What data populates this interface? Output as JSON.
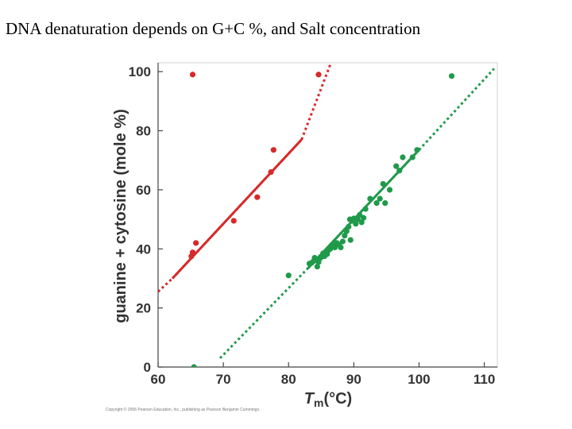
{
  "slide": {
    "title": "DNA denaturation depends on G+C %, and Salt concentration",
    "copyright": "Copyright © 2006 Pearson Education, Inc., publishing as Pearson Benjamin Cummings."
  },
  "chart_data": {
    "type": "scatter",
    "title": "",
    "xlabel_main": "T",
    "xlabel_sub": "m",
    "xlabel_rest": "(°C)",
    "ylabel": "guanine + cytosine (mole %)",
    "xlim": [
      60,
      112
    ],
    "ylim": [
      0,
      103
    ],
    "xticks": [
      60,
      70,
      80,
      90,
      100,
      110
    ],
    "yticks": [
      0,
      20,
      40,
      60,
      80,
      100
    ],
    "grid": false,
    "series": [
      {
        "name": "red",
        "color": "#d62a2a",
        "points": [
          [
            65.3,
            99
          ],
          [
            65.1,
            37.5
          ],
          [
            65.3,
            38.8
          ],
          [
            65.8,
            42
          ],
          [
            71.6,
            49.5
          ],
          [
            75.2,
            57.5
          ],
          [
            77.3,
            66
          ],
          [
            77.7,
            73.5
          ],
          [
            84.6,
            99
          ]
        ],
        "fit_solid": [
          [
            62.2,
            30
          ],
          [
            82,
            77
          ]
        ],
        "fit_dotted": [
          [
            60,
            25.5
          ],
          [
            62.2,
            30
          ],
          [
            82,
            77
          ],
          [
            86.5,
            103
          ]
        ]
      },
      {
        "name": "green",
        "color": "#1f9a4a",
        "points": [
          [
            65.5,
            0
          ],
          [
            80,
            31
          ],
          [
            83.2,
            35
          ],
          [
            83.5,
            35.2
          ],
          [
            83.8,
            35.8
          ],
          [
            84,
            37
          ],
          [
            84.2,
            36.5
          ],
          [
            84.4,
            34
          ],
          [
            84.6,
            35.5
          ],
          [
            84.8,
            36.8
          ],
          [
            85,
            37.2
          ],
          [
            85.3,
            38.5
          ],
          [
            85.5,
            37.5
          ],
          [
            85.7,
            39
          ],
          [
            85.9,
            38.2
          ],
          [
            86.1,
            39.5
          ],
          [
            86.4,
            40
          ],
          [
            86.8,
            41.2
          ],
          [
            87.1,
            40.5
          ],
          [
            87.4,
            42
          ],
          [
            87.7,
            41.5
          ],
          [
            88,
            40.5
          ],
          [
            88.3,
            42.5
          ],
          [
            88.6,
            44.5
          ],
          [
            88.9,
            46
          ],
          [
            89.2,
            47.5
          ],
          [
            89.5,
            43
          ],
          [
            89.4,
            50
          ],
          [
            89.7,
            49.5
          ],
          [
            90,
            50.3
          ],
          [
            90.3,
            48.5
          ],
          [
            90.6,
            50
          ],
          [
            90.9,
            51.5
          ],
          [
            91.2,
            49
          ],
          [
            91.5,
            50.5
          ],
          [
            91.8,
            53.5
          ],
          [
            92.5,
            57
          ],
          [
            93.5,
            55.5
          ],
          [
            94,
            57
          ],
          [
            94.5,
            62
          ],
          [
            94.8,
            55.5
          ],
          [
            95.5,
            60
          ],
          [
            96.5,
            68
          ],
          [
            97,
            66.5
          ],
          [
            97.5,
            71
          ],
          [
            99,
            71
          ],
          [
            99.7,
            73.5
          ],
          [
            105,
            98.5
          ]
        ],
        "fit_solid": [
          [
            83,
            33.5
          ],
          [
            100,
            73.5
          ]
        ],
        "fit_dotted": [
          [
            69.5,
            3
          ],
          [
            83,
            33.5
          ],
          [
            100,
            73.5
          ],
          [
            111.5,
            101
          ]
        ]
      }
    ]
  }
}
